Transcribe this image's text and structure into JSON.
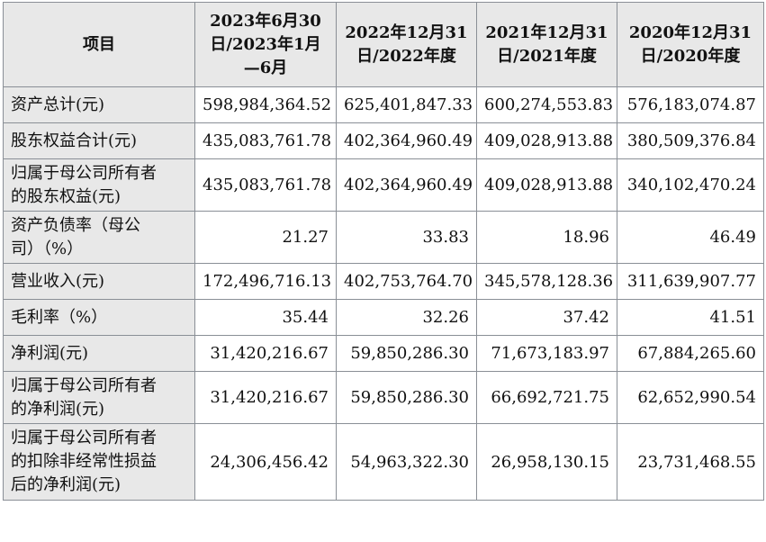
{
  "header": {
    "item": "项目",
    "cols": [
      [
        "2023年6月30",
        "日/2023年1月",
        "—6月"
      ],
      [
        "2022年12月31",
        "日/2022年度"
      ],
      [
        "2021年12月31",
        "日/2021年度"
      ],
      [
        "2020年12月31",
        "日/2020年度"
      ]
    ]
  },
  "rows": [
    {
      "label": [
        "资产总计(元)"
      ],
      "values": [
        "598,984,364.52",
        "625,401,847.33",
        "600,274,553.83",
        "576,183,074.87"
      ]
    },
    {
      "label": [
        "股东权益合计(元)"
      ],
      "values": [
        "435,083,761.78",
        "402,364,960.49",
        "409,028,913.88",
        "380,509,376.84"
      ]
    },
    {
      "label": [
        "归属于母公司所有者",
        "的股东权益(元)"
      ],
      "values": [
        "435,083,761.78",
        "402,364,960.49",
        "409,028,913.88",
        "340,102,470.24"
      ]
    },
    {
      "label": [
        "资产负债率（母公",
        "司）（%）"
      ],
      "values": [
        "21.27",
        "33.83",
        "18.96",
        "46.49"
      ]
    },
    {
      "label": [
        "营业收入(元)"
      ],
      "values": [
        "172,496,716.13",
        "402,753,764.70",
        "345,578,128.36",
        "311,639,907.77"
      ]
    },
    {
      "label": [
        "毛利率（%）"
      ],
      "values": [
        "35.44",
        "32.26",
        "37.42",
        "41.51"
      ]
    },
    {
      "label": [
        "净利润(元)"
      ],
      "values": [
        "31,420,216.67",
        "59,850,286.30",
        "71,673,183.97",
        "67,884,265.60"
      ]
    },
    {
      "label": [
        "归属于母公司所有者",
        "的净利润(元)"
      ],
      "values": [
        "31,420,216.67",
        "59,850,286.30",
        "66,692,721.75",
        "62,652,990.54"
      ]
    },
    {
      "label": [
        "归属于母公司所有者",
        "的扣除非经常性损益",
        "后的净利润(元)"
      ],
      "values": [
        "24,306,456.42",
        "54,963,322.30",
        "26,958,130.15",
        "23,731,468.55"
      ]
    }
  ]
}
